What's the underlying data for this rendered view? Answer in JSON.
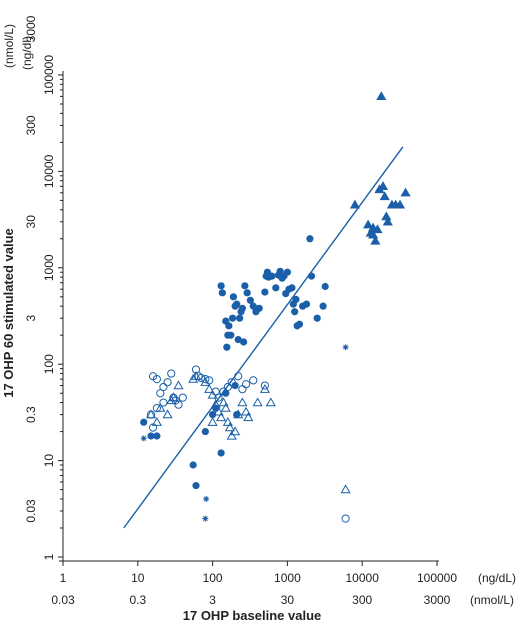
{
  "chart_data": {
    "type": "scatter",
    "xlabel": "17 OHP baseline value",
    "ylabel": "17 OHP 60 stimulated value",
    "x_scale": "log",
    "y_scale": "log",
    "xlim": [
      1,
      100000
    ],
    "ylim": [
      1,
      100000
    ],
    "x_ticks": [
      1,
      10,
      100,
      1000,
      10000,
      100000
    ],
    "x_tick_labels": [
      "1",
      "10",
      "100",
      "1000",
      "10000",
      "100000"
    ],
    "x_unit": "(ng/dL)",
    "x_ticks_alt": [
      1,
      10,
      100,
      1000,
      10000,
      100000
    ],
    "x_tick_labels_alt": [
      "0.03",
      "0.3",
      "3",
      "30",
      "300",
      "3000"
    ],
    "x_unit_alt": "(nmol/L)",
    "y_ticks": [
      1,
      10,
      100,
      1000,
      10000,
      100000
    ],
    "y_tick_labels": [
      "1",
      "10",
      "100",
      "1000",
      "10000",
      "100000"
    ],
    "y_unit": "(ng/dl)",
    "y_ticks_alt": [
      1,
      10,
      100,
      1000,
      10000,
      100000
    ],
    "y_tick_labels_alt": [
      "0.03",
      "0.3",
      "3",
      "30",
      "300",
      "3000"
    ],
    "y_unit_alt": "(nmol/L)",
    "grid": false,
    "colors": {
      "marker": "#1a5fa8",
      "line": "#1a5fa8",
      "axis": "#222222"
    },
    "regression_line": {
      "x": [
        6.5,
        35000
      ],
      "y": [
        2.0,
        18000
      ]
    },
    "series": [
      {
        "marker": "filled-triangle",
        "points": [
          [
            18000,
            60000
          ],
          [
            8000,
            4500
          ],
          [
            12000,
            2800
          ],
          [
            13000,
            2300
          ],
          [
            14000,
            2600
          ],
          [
            15000,
            1900
          ],
          [
            16000,
            2500
          ],
          [
            17000,
            6500
          ],
          [
            19000,
            7000
          ],
          [
            20000,
            5500
          ],
          [
            22000,
            3000
          ],
          [
            25000,
            4500
          ],
          [
            28000,
            4500
          ],
          [
            32000,
            4500
          ],
          [
            38000,
            6000
          ],
          [
            14000,
            2200
          ],
          [
            21000,
            3400
          ]
        ]
      },
      {
        "marker": "filled-circle",
        "points": [
          [
            130,
            650
          ],
          [
            135,
            550
          ],
          [
            150,
            280
          ],
          [
            155,
            150
          ],
          [
            160,
            200
          ],
          [
            165,
            250
          ],
          [
            175,
            200
          ],
          [
            185,
            300
          ],
          [
            190,
            500
          ],
          [
            200,
            400
          ],
          [
            210,
            420
          ],
          [
            220,
            180
          ],
          [
            230,
            300
          ],
          [
            240,
            350
          ],
          [
            250,
            380
          ],
          [
            260,
            170
          ],
          [
            270,
            650
          ],
          [
            290,
            550
          ],
          [
            320,
            460
          ],
          [
            350,
            400
          ],
          [
            380,
            350
          ],
          [
            420,
            380
          ],
          [
            500,
            560
          ],
          [
            520,
            820
          ],
          [
            540,
            900
          ],
          [
            560,
            800
          ],
          [
            620,
            820
          ],
          [
            700,
            620
          ],
          [
            760,
            840
          ],
          [
            800,
            920
          ],
          [
            850,
            780
          ],
          [
            900,
            820
          ],
          [
            950,
            540
          ],
          [
            1000,
            900
          ],
          [
            1050,
            600
          ],
          [
            1150,
            620
          ],
          [
            1200,
            420
          ],
          [
            1250,
            350
          ],
          [
            1300,
            470
          ],
          [
            1350,
            250
          ],
          [
            1450,
            260
          ],
          [
            1600,
            400
          ],
          [
            1800,
            420
          ],
          [
            2000,
            2000
          ],
          [
            2100,
            820
          ],
          [
            2500,
            300
          ],
          [
            3000,
            400
          ],
          [
            3200,
            640
          ],
          [
            12,
            25
          ],
          [
            15,
            18
          ],
          [
            18,
            18
          ],
          [
            80,
            20
          ],
          [
            55,
            9
          ],
          [
            60,
            5.5
          ],
          [
            100,
            30
          ],
          [
            110,
            35
          ],
          [
            130,
            12
          ],
          [
            150,
            50
          ],
          [
            200,
            60
          ],
          [
            210,
            30
          ]
        ]
      },
      {
        "marker": "open-circle",
        "points": [
          [
            16,
            75
          ],
          [
            18,
            70
          ],
          [
            20,
            50
          ],
          [
            22,
            58
          ],
          [
            25,
            65
          ],
          [
            28,
            80
          ],
          [
            30,
            45
          ],
          [
            32,
            42
          ],
          [
            22,
            40
          ],
          [
            18,
            35
          ],
          [
            15,
            30
          ],
          [
            16,
            22
          ],
          [
            35,
            38
          ],
          [
            40,
            45
          ],
          [
            60,
            88
          ],
          [
            65,
            75
          ],
          [
            70,
            72
          ],
          [
            80,
            70
          ],
          [
            90,
            68
          ],
          [
            110,
            52
          ],
          [
            120,
            45
          ],
          [
            140,
            52
          ],
          [
            160,
            58
          ],
          [
            180,
            65
          ],
          [
            220,
            75
          ],
          [
            250,
            55
          ],
          [
            280,
            62
          ],
          [
            350,
            68
          ],
          [
            500,
            60
          ],
          [
            6000,
            2.5
          ]
        ]
      },
      {
        "marker": "open-triangle",
        "points": [
          [
            15,
            30
          ],
          [
            18,
            25
          ],
          [
            20,
            35
          ],
          [
            25,
            30
          ],
          [
            28,
            42
          ],
          [
            30,
            45
          ],
          [
            35,
            60
          ],
          [
            55,
            70
          ],
          [
            60,
            75
          ],
          [
            80,
            65
          ],
          [
            90,
            55
          ],
          [
            100,
            48
          ],
          [
            110,
            38
          ],
          [
            120,
            32
          ],
          [
            130,
            28
          ],
          [
            140,
            40
          ],
          [
            150,
            35
          ],
          [
            160,
            25
          ],
          [
            170,
            22
          ],
          [
            180,
            18
          ],
          [
            200,
            20
          ],
          [
            220,
            30
          ],
          [
            250,
            40
          ],
          [
            280,
            32
          ],
          [
            300,
            28
          ],
          [
            400,
            40
          ],
          [
            500,
            55
          ],
          [
            600,
            40
          ],
          [
            6000,
            5
          ],
          [
            100,
            25
          ]
        ]
      },
      {
        "marker": "asterisk",
        "points": [
          [
            6000,
            150
          ],
          [
            12,
            17
          ],
          [
            82,
            4.0
          ],
          [
            80,
            2.5
          ]
        ]
      }
    ]
  }
}
